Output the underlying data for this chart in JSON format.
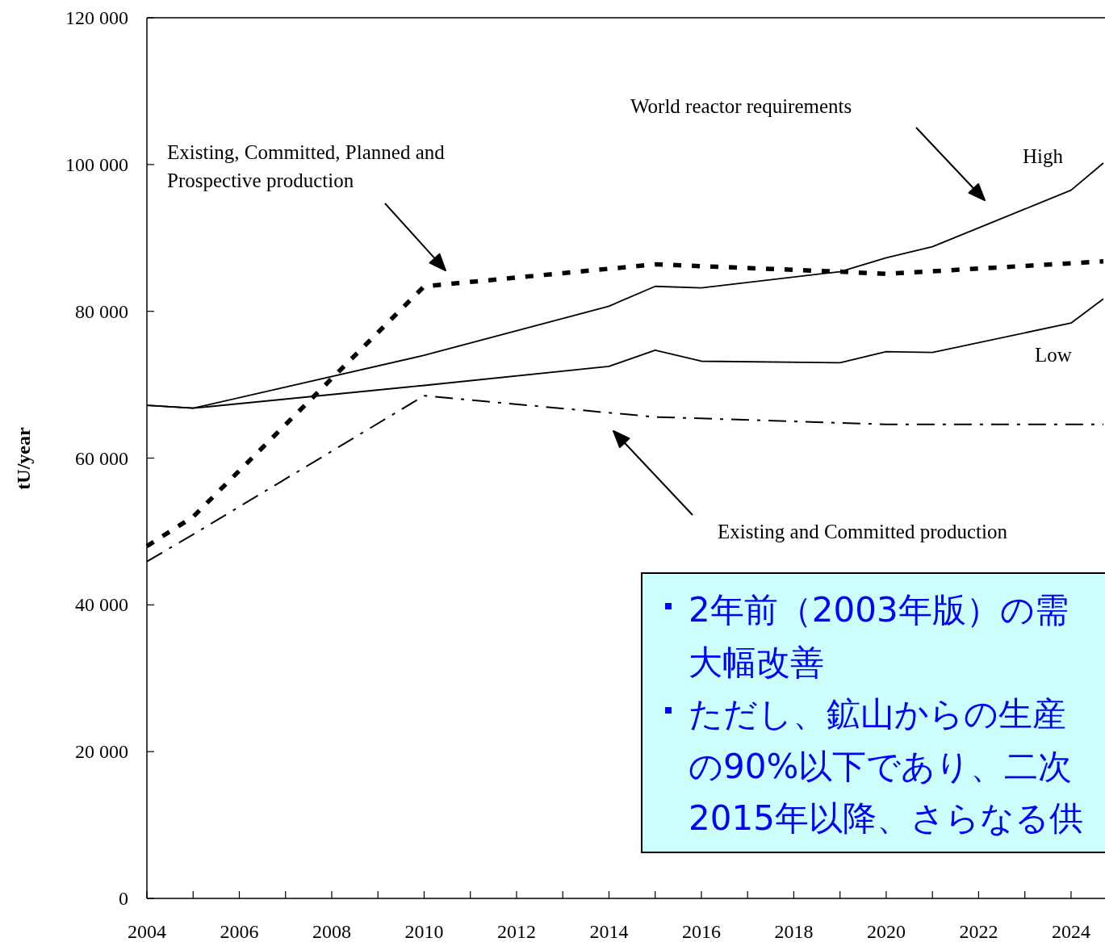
{
  "chart_data": {
    "type": "line",
    "ylabel": "tU/year",
    "xlim": [
      2004,
      2024.7
    ],
    "xticks": [
      2004,
      {
        "value": 2005,
        "label": null
      },
      2006,
      {
        "value": 2007,
        "label": null
      },
      2008,
      {
        "value": 2009,
        "label": null
      },
      2010,
      {
        "value": 2011,
        "label": null
      },
      2012,
      {
        "value": 2013,
        "label": null
      },
      2014,
      {
        "value": 2015,
        "label": null
      },
      2016,
      {
        "value": 2017,
        "label": null
      },
      2018,
      {
        "value": 2019,
        "label": null
      },
      2020,
      {
        "value": 2021,
        "label": null
      },
      2022,
      {
        "value": 2023,
        "label": null
      },
      2024
    ],
    "ylim": [
      0,
      120000
    ],
    "yticks": [
      {
        "value": 0,
        "label": "0"
      },
      {
        "value": 20000,
        "label": "20 000"
      },
      {
        "value": 40000,
        "label": "40 000"
      },
      {
        "value": 60000,
        "label": "60 000"
      },
      {
        "value": 80000,
        "label": "80 000"
      },
      {
        "value": 100000,
        "label": "100 000"
      },
      {
        "value": 120000,
        "label": "120 000"
      }
    ],
    "grid": false,
    "legend": false,
    "marker": "none",
    "series": [
      {
        "name": "High",
        "color": "#000000",
        "line_style": "solid",
        "x": [
          2004,
          2005,
          2010,
          2014,
          2015,
          2016,
          2019,
          2020,
          2021,
          2024,
          2024.7
        ],
        "values": [
          67200,
          66800,
          74000,
          80700,
          83400,
          83200,
          85400,
          87300,
          88800,
          96500,
          100200
        ]
      },
      {
        "name": "Low",
        "color": "#000000",
        "line_style": "solid",
        "x": [
          2004,
          2005,
          2010,
          2014,
          2015,
          2016,
          2019,
          2020,
          2021,
          2024,
          2024.7
        ],
        "values": [
          67200,
          66800,
          69900,
          72500,
          74700,
          73200,
          73000,
          74500,
          74400,
          78400,
          81700
        ]
      },
      {
        "color": "#000000",
        "line_style": "dashed",
        "x": [
          2004,
          2005,
          2010,
          2015,
          2019,
          2020,
          2024.7
        ],
        "values": [
          48000,
          52000,
          83400,
          86400,
          85400,
          85100,
          86800
        ]
      },
      {
        "color": "#000000",
        "line_style": "dashdot",
        "x": [
          2004,
          2005,
          2010,
          2015,
          2019,
          2020,
          2024.7
        ],
        "values": [
          45900,
          49600,
          68500,
          65600,
          64800,
          64600,
          64600
        ]
      }
    ],
    "annotations": [
      "World reactor requirements",
      "Existing, Committed, Planned and Prospective production",
      "Existing and Committed production",
      "2年前（2003年版）の需",
      "大幅改善",
      "ただし、鉱山からの生産",
      "の90%以下であり、二次",
      "2015年以降、さらなる供"
    ]
  }
}
